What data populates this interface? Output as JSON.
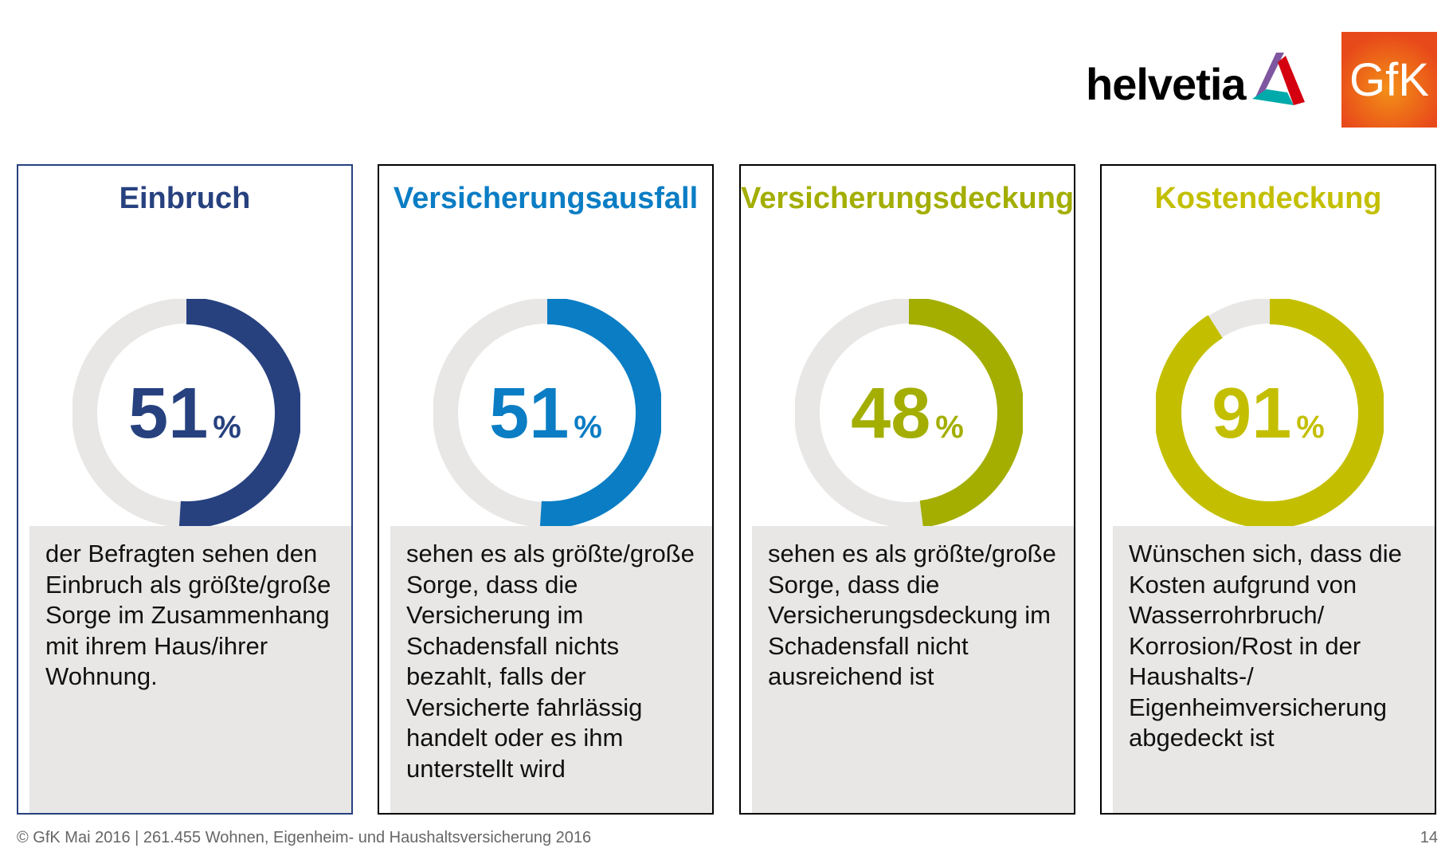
{
  "logos": {
    "helvetia": "helvetia",
    "gfk": "GfK"
  },
  "panels": [
    {
      "title": "Einbruch",
      "value": 51,
      "value_text": "51",
      "percent": "%",
      "color": "#27417f",
      "description": "der Befragten sehen den Einbruch als größte/große Sorge im Zusammenhang mit ihrem Haus/ihrer Wohnung."
    },
    {
      "title": "Versicherungsausfall",
      "value": 51,
      "value_text": "51",
      "percent": "%",
      "color": "#0a7dc4",
      "description": "sehen es als größte/große Sorge, dass die Versicherung im Schadensfall nichts bezahlt, falls der Versicherte fahrlässig handelt oder es ihm unterstellt wird"
    },
    {
      "title": "Versicherungsdeckung",
      "value": 48,
      "value_text": "48",
      "percent": "%",
      "color": "#a3ae00",
      "description": "sehen es als größte/große Sorge, dass die Versicherungsdeckung im Schadensfall nicht ausreichend ist"
    },
    {
      "title": "Kostendeckung",
      "value": 91,
      "value_text": "91",
      "percent": "%",
      "color": "#c3bf00",
      "description": "Wünschen sich, dass die Kosten aufgrund von Wasserrohrbruch/ Korrosion/Rost in der Haushalts-/ Eigenheimversicherung abgedeckt ist"
    }
  ],
  "footer": {
    "text": "© GfK Mai 2016 | 261.455 Wohnen, Eigenheim- und Haushaltsversicherung 2016",
    "page": "14"
  }
}
